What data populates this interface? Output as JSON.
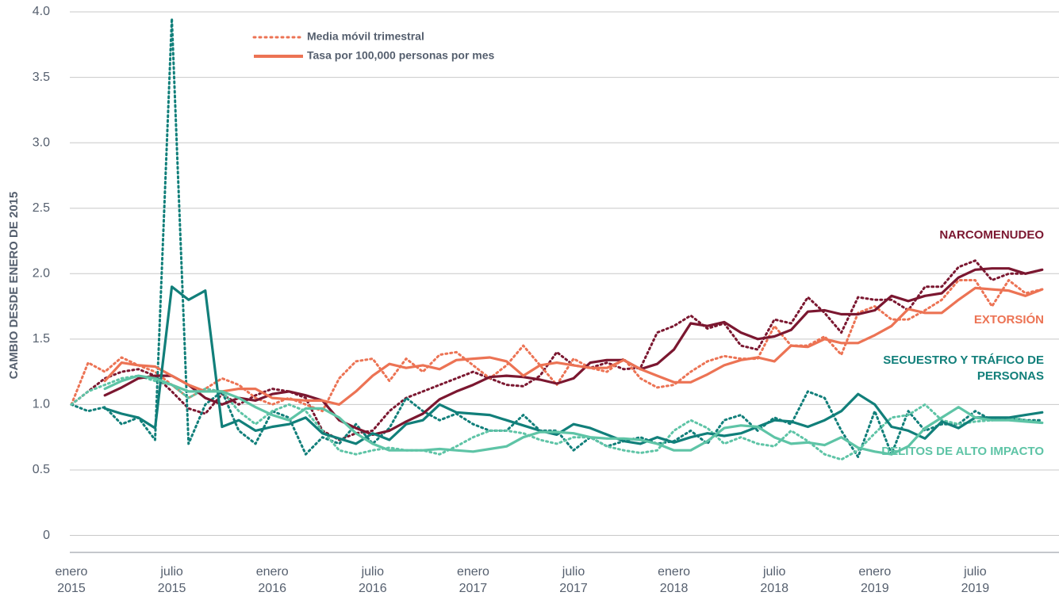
{
  "chart_data": {
    "type": "line",
    "y_axis_label": "CAMBIO DESDE ENERO DE 2015",
    "categories": [
      "enero 2015",
      null,
      null,
      null,
      null,
      null,
      "julio 2015",
      null,
      null,
      null,
      null,
      null,
      "enero 2016",
      null,
      null,
      null,
      null,
      null,
      "julio 2016",
      null,
      null,
      null,
      null,
      null,
      "enero 2017",
      null,
      null,
      null,
      null,
      null,
      "julio 2017",
      null,
      null,
      null,
      null,
      null,
      "enero 2018",
      null,
      null,
      null,
      null,
      null,
      "julio 2018",
      null,
      null,
      null,
      null,
      null,
      "enero 2019",
      null,
      null,
      null,
      null,
      null,
      "julio 2019",
      null,
      null,
      null,
      null
    ],
    "ylim": [
      -0.13,
      4
    ],
    "yticks": [
      0,
      0.5,
      {
        "value": 1,
        "label": "1.0"
      },
      1.5,
      {
        "value": 2,
        "label": "2.0"
      },
      2.5,
      {
        "value": 3,
        "label": "3.0"
      },
      3.5,
      {
        "value": 4,
        "label": "4.0"
      }
    ],
    "grid": true,
    "legend": {
      "color": "#ec7354",
      "entries": [
        {
          "label": "Media móvil trimestral",
          "dash": "dotted"
        },
        {
          "label": "Tasa por 100,000 personas por mes",
          "dash": "solid"
        }
      ]
    },
    "series": [
      {
        "name": "NARCOMENUDEO",
        "color": "#7b1730",
        "rate": [
          null,
          null,
          1.07,
          1.13,
          1.2,
          1.22,
          1.22,
          1.15,
          1.05,
          1.0,
          1.05,
          1.03,
          1.08,
          1.1,
          1.07,
          1.03,
          0.88,
          0.82,
          0.77,
          0.8,
          0.87,
          0.93,
          1.04,
          1.1,
          1.15,
          1.21,
          1.22,
          1.21,
          1.19,
          1.16,
          1.2,
          1.32,
          1.34,
          1.34,
          1.27,
          1.31,
          1.42,
          1.62,
          1.6,
          1.63,
          1.55,
          1.5,
          1.52,
          1.57,
          1.71,
          1.72,
          1.69,
          1.69,
          1.72,
          1.83,
          1.79,
          1.83,
          1.85,
          1.97,
          2.03,
          2.04,
          2.04,
          2.0,
          2.03
        ],
        "moving_average": [
          1.0,
          1.1,
          1.2,
          1.25,
          1.27,
          1.22,
          1.1,
          0.97,
          0.93,
          1.08,
          1.0,
          1.07,
          1.12,
          1.1,
          1.05,
          0.8,
          0.73,
          0.78,
          0.8,
          0.95,
          1.05,
          1.1,
          1.15,
          1.2,
          1.25,
          1.2,
          1.15,
          1.14,
          1.22,
          1.4,
          1.3,
          1.28,
          1.32,
          1.27,
          1.28,
          1.55,
          1.6,
          1.68,
          1.58,
          1.62,
          1.45,
          1.42,
          1.65,
          1.62,
          1.82,
          1.7,
          1.55,
          1.82,
          1.8,
          1.8,
          1.72,
          1.9,
          1.9,
          2.05,
          2.1,
          1.95,
          2.0,
          2.0,
          2.03
        ]
      },
      {
        "name": "EXTORSIÓN",
        "color": "#ec7354",
        "rate": [
          null,
          null,
          1.18,
          1.32,
          1.3,
          1.29,
          1.22,
          1.15,
          1.1,
          1.1,
          1.12,
          1.12,
          1.05,
          1.04,
          1.03,
          1.03,
          1.0,
          1.1,
          1.22,
          1.31,
          1.28,
          1.3,
          1.27,
          1.34,
          1.35,
          1.36,
          1.33,
          1.22,
          1.3,
          1.32,
          1.3,
          1.28,
          1.28,
          1.34,
          1.27,
          1.22,
          1.17,
          1.17,
          1.23,
          1.3,
          1.34,
          1.36,
          1.33,
          1.45,
          1.44,
          1.5,
          1.47,
          1.47,
          1.53,
          1.6,
          1.73,
          1.7,
          1.7,
          1.8,
          1.89,
          1.88,
          1.87,
          1.83,
          1.88
        ],
        "moving_average": [
          1.0,
          1.32,
          1.25,
          1.36,
          1.3,
          1.25,
          1.15,
          1.05,
          1.12,
          1.2,
          1.15,
          1.05,
          1.0,
          1.05,
          1.0,
          0.95,
          1.2,
          1.33,
          1.35,
          1.18,
          1.35,
          1.25,
          1.38,
          1.4,
          1.3,
          1.2,
          1.3,
          1.45,
          1.3,
          1.15,
          1.35,
          1.28,
          1.25,
          1.35,
          1.2,
          1.13,
          1.15,
          1.25,
          1.33,
          1.37,
          1.35,
          1.35,
          1.6,
          1.45,
          1.45,
          1.52,
          1.38,
          1.7,
          1.75,
          1.65,
          1.65,
          1.72,
          1.8,
          1.95,
          1.95,
          1.75,
          1.95,
          1.85,
          1.88
        ]
      },
      {
        "name": "SECUESTRO Y TRÁFICO DE PERSONAS",
        "color": "#117f7a",
        "rate": [
          null,
          null,
          0.97,
          0.93,
          0.9,
          0.82,
          1.9,
          1.8,
          1.87,
          0.83,
          0.88,
          0.8,
          0.83,
          0.85,
          0.9,
          0.78,
          0.74,
          0.7,
          0.78,
          0.73,
          0.85,
          0.88,
          1.0,
          0.94,
          0.93,
          0.92,
          0.88,
          0.84,
          0.8,
          0.77,
          0.85,
          0.82,
          0.77,
          0.72,
          0.7,
          0.75,
          0.71,
          0.75,
          0.78,
          0.76,
          0.78,
          0.83,
          0.88,
          0.87,
          0.83,
          0.88,
          0.95,
          1.08,
          1.0,
          0.83,
          0.8,
          0.74,
          0.87,
          0.82,
          0.9,
          0.9,
          0.9,
          0.92,
          0.94
        ],
        "moving_average": [
          1.0,
          0.95,
          0.98,
          0.85,
          0.9,
          0.73,
          3.95,
          0.7,
          1.0,
          1.1,
          0.8,
          0.7,
          0.95,
          0.9,
          0.62,
          0.75,
          0.7,
          0.85,
          0.7,
          0.82,
          1.05,
          0.95,
          0.88,
          0.93,
          0.85,
          0.8,
          0.8,
          0.92,
          0.8,
          0.8,
          0.65,
          0.75,
          0.68,
          0.72,
          0.75,
          0.7,
          0.72,
          0.8,
          0.7,
          0.88,
          0.92,
          0.8,
          0.9,
          0.85,
          1.1,
          1.05,
          0.8,
          0.6,
          0.95,
          0.62,
          0.95,
          0.8,
          0.85,
          0.85,
          0.95,
          0.88,
          0.9,
          0.88,
          0.88
        ]
      },
      {
        "name": "DELITOS DE ALTO IMPACTO",
        "color": "#5ec4a6",
        "rate": [
          null,
          null,
          1.12,
          1.18,
          1.22,
          1.2,
          1.15,
          1.1,
          1.1,
          1.1,
          1.05,
          0.98,
          0.92,
          0.88,
          0.97,
          0.97,
          0.9,
          0.78,
          0.7,
          0.65,
          0.65,
          0.65,
          0.66,
          0.65,
          0.64,
          0.66,
          0.68,
          0.75,
          0.79,
          0.79,
          0.78,
          0.75,
          0.74,
          0.74,
          0.73,
          0.7,
          0.65,
          0.65,
          0.72,
          0.82,
          0.84,
          0.83,
          0.75,
          0.7,
          0.71,
          0.69,
          0.75,
          0.67,
          0.64,
          0.62,
          0.68,
          0.82,
          0.9,
          0.98,
          0.9,
          0.88,
          0.88,
          0.87,
          0.86
        ],
        "moving_average": [
          1.0,
          1.1,
          1.15,
          1.2,
          1.22,
          1.18,
          1.15,
          1.05,
          1.12,
          1.1,
          0.95,
          0.85,
          0.95,
          1.0,
          0.95,
          0.8,
          0.65,
          0.62,
          0.65,
          0.67,
          0.65,
          0.65,
          0.62,
          0.68,
          0.75,
          0.8,
          0.8,
          0.78,
          0.73,
          0.7,
          0.75,
          0.75,
          0.68,
          0.65,
          0.63,
          0.65,
          0.8,
          0.88,
          0.82,
          0.7,
          0.75,
          0.7,
          0.68,
          0.8,
          0.72,
          0.62,
          0.58,
          0.65,
          0.78,
          0.9,
          0.92,
          1.0,
          0.88,
          0.85,
          0.87,
          0.88,
          0.9,
          0.88,
          0.86
        ]
      }
    ]
  }
}
